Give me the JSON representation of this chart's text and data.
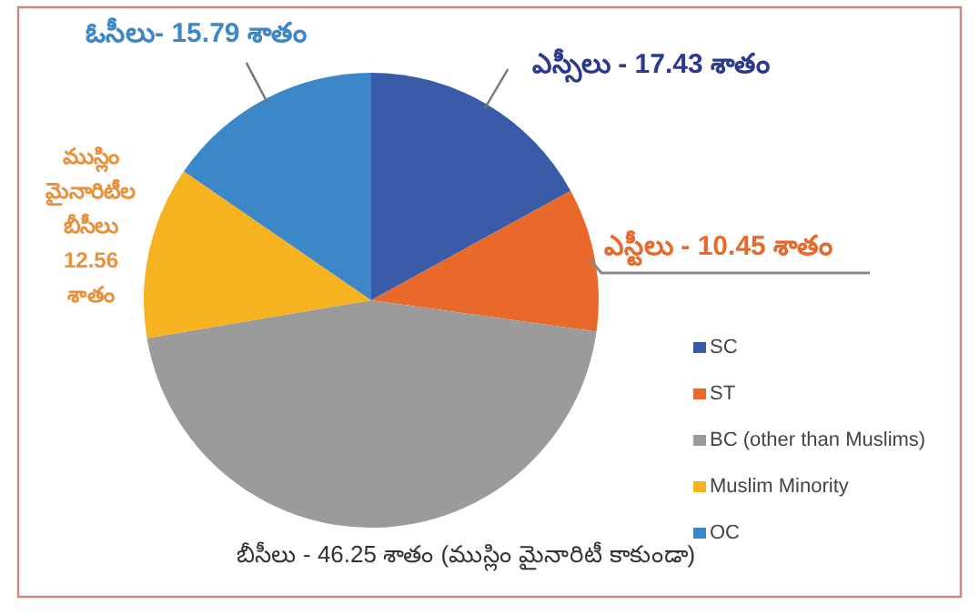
{
  "chart_data": {
    "type": "pie",
    "categories": [
      "SC",
      "ST",
      "BC (other than Muslims)",
      "Muslim Minority",
      "OC"
    ],
    "values": [
      17.43,
      10.45,
      46.25,
      12.56,
      15.79
    ],
    "colors": [
      "#3a5ba8",
      "#e8692a",
      "#9b9b9b",
      "#f6b21f",
      "#3b87c8"
    ],
    "value_labels": [
      "17.43",
      "10.45",
      "46.25",
      "12.56",
      "15.79"
    ],
    "annotations": [
      {
        "text": "ఎస్సీలు -",
        "x": "SC"
      },
      {
        "text": "శాతం",
        "x": "SC"
      },
      {
        "text": "ఎస్టీలు -",
        "x": "ST"
      },
      {
        "text": "శాతం",
        "x": "ST"
      },
      {
        "text": "బీసీలు  -",
        "x": "BC (other than Muslims)"
      },
      {
        "text": "శాతం (ముస్లిం మైనారిటీ కాకుండా)",
        "x": "BC (other than Muslims)"
      },
      {
        "text": "ముస్లిం మైనారిటీల బీసీలు",
        "x": "Muslim Minority"
      },
      {
        "text": "శాతం",
        "x": "Muslim Minority"
      },
      {
        "text": "ఓసీలు-",
        "x": "OC"
      },
      {
        "text": "శాతం",
        "x": "OC"
      }
    ],
    "legend": "right"
  }
}
